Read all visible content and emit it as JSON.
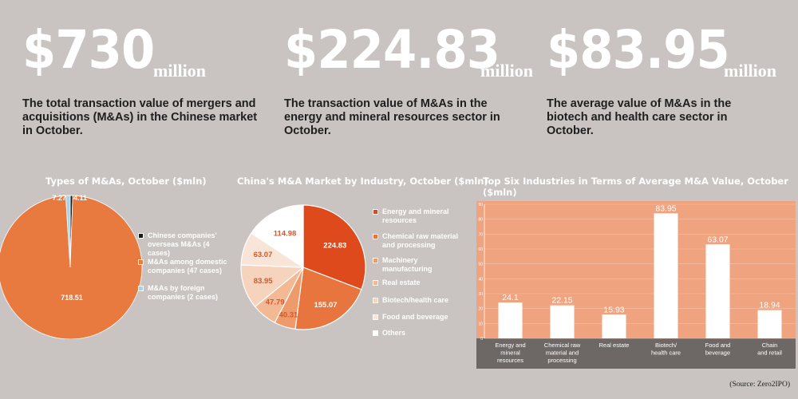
{
  "stats": [
    {
      "value": "$730",
      "unit": "million",
      "desc": "The total transaction value of mergers and acquisitions (M&As) in the Chinese market in October."
    },
    {
      "value": "$224.83",
      "unit": "million",
      "desc": "The transaction value of M&As in the energy and mineral resources sector in October."
    },
    {
      "value": "$83.95",
      "unit": "million",
      "desc": "The average value of M&As in the biotech and health care sector in October."
    }
  ],
  "source": "(Source: Zero2IPO)",
  "colors": {
    "background": "#c9c4c1",
    "white": "#ffffff",
    "orange": "#e87a40"
  },
  "chart_data": [
    {
      "type": "pie",
      "title": "Types of M&As, October ($mln)",
      "series": [
        {
          "label": "Chinese companies' overseas M&As (4 cases)",
          "value": 4.11,
          "display": "4.11",
          "color": "#1a1a1a"
        },
        {
          "label": "M&As among domestic companies (47 cases)",
          "value": 718.51,
          "display": "718.51",
          "color": "#e87a40"
        },
        {
          "label": "M&As by foreign companies (2 cases)",
          "value": 7.27,
          "display": "7.27",
          "color": "#a8d4ea"
        }
      ]
    },
    {
      "type": "pie",
      "title": "China's M&A Market by Industry, October ($mln)",
      "series": [
        {
          "label": "Energy and mineral resources",
          "value": 224.83,
          "display": "224.83",
          "color": "#df4a1c"
        },
        {
          "label": "Chemical raw material and processing",
          "value": 155.07,
          "display": "155.07",
          "color": "#e8743e"
        },
        {
          "label": "Machinery manufacturing",
          "value": 40.31,
          "display": "40.31",
          "color": "#ef9a6b"
        },
        {
          "label": "Real estate",
          "value": 47.79,
          "display": "47.79",
          "color": "#f3b894"
        },
        {
          "label": "Biotech/health care",
          "value": 83.95,
          "display": "83.95",
          "color": "#f6d3bd"
        },
        {
          "label": "Food and beverage",
          "value": 63.07,
          "display": "63.07",
          "color": "#f9e5d7"
        },
        {
          "label": "Others",
          "value": 114.98,
          "display": "114.98",
          "color": "#ffffff"
        }
      ]
    },
    {
      "type": "bar",
      "title": "Top Six Industries in Terms of Average M&A Value, October ($mln)",
      "categories": [
        [
          "Energy and",
          "mineral",
          "resources"
        ],
        [
          "Chemical raw",
          "material and",
          "processing"
        ],
        [
          "Real estate"
        ],
        [
          "Biotech/",
          "health care"
        ],
        [
          "Food and",
          "beverage"
        ],
        [
          "Chain",
          "and retail"
        ]
      ],
      "values": [
        24.1,
        22.15,
        15.93,
        83.95,
        63.07,
        18.94
      ],
      "labels": [
        "24.1",
        "22.15",
        "15.93",
        "83.95",
        "63.07",
        "18.94"
      ],
      "ylim": [
        0,
        90
      ],
      "yticks": [
        "0",
        "10",
        "20",
        "30",
        "40",
        "50",
        "60",
        "70",
        "80",
        "90"
      ],
      "grid": true
    }
  ]
}
